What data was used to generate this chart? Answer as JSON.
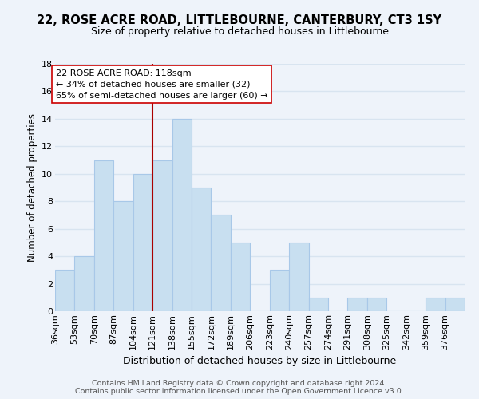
{
  "title": "22, ROSE ACRE ROAD, LITTLEBOURNE, CANTERBURY, CT3 1SY",
  "subtitle": "Size of property relative to detached houses in Littlebourne",
  "xlabel": "Distribution of detached houses by size in Littlebourne",
  "ylabel": "Number of detached properties",
  "bin_labels": [
    "36sqm",
    "53sqm",
    "70sqm",
    "87sqm",
    "104sqm",
    "121sqm",
    "138sqm",
    "155sqm",
    "172sqm",
    "189sqm",
    "206sqm",
    "223sqm",
    "240sqm",
    "257sqm",
    "274sqm",
    "291sqm",
    "308sqm",
    "325sqm",
    "342sqm",
    "359sqm",
    "376sqm"
  ],
  "bin_edges": [
    36,
    53,
    70,
    87,
    104,
    121,
    138,
    155,
    172,
    189,
    206,
    223,
    240,
    257,
    274,
    291,
    308,
    325,
    342,
    359,
    376,
    393
  ],
  "counts": [
    3,
    4,
    11,
    8,
    10,
    11,
    14,
    9,
    7,
    5,
    0,
    3,
    5,
    1,
    0,
    1,
    1,
    0,
    0,
    1,
    1
  ],
  "bar_color": "#c8dff0",
  "bar_edgecolor": "#a8c8e8",
  "property_line_x": 121,
  "property_line_color": "#aa0000",
  "annotation_line1": "22 ROSE ACRE ROAD: 118sqm",
  "annotation_line2": "← 34% of detached houses are smaller (32)",
  "annotation_line3": "65% of semi-detached houses are larger (60) →",
  "annotation_box_edgecolor": "#cc0000",
  "annotation_box_facecolor": "#ffffff",
  "ylim": [
    0,
    18
  ],
  "yticks": [
    0,
    2,
    4,
    6,
    8,
    10,
    12,
    14,
    16,
    18
  ],
  "footer1": "Contains HM Land Registry data © Crown copyright and database right 2024.",
  "footer2": "Contains public sector information licensed under the Open Government Licence v3.0.",
  "background_color": "#eef3fa",
  "grid_color": "#d8e4f0",
  "title_fontsize": 10.5,
  "subtitle_fontsize": 9,
  "ylabel_fontsize": 8.5,
  "xlabel_fontsize": 9,
  "tick_fontsize": 8,
  "annotation_fontsize": 8,
  "footer_fontsize": 6.8
}
